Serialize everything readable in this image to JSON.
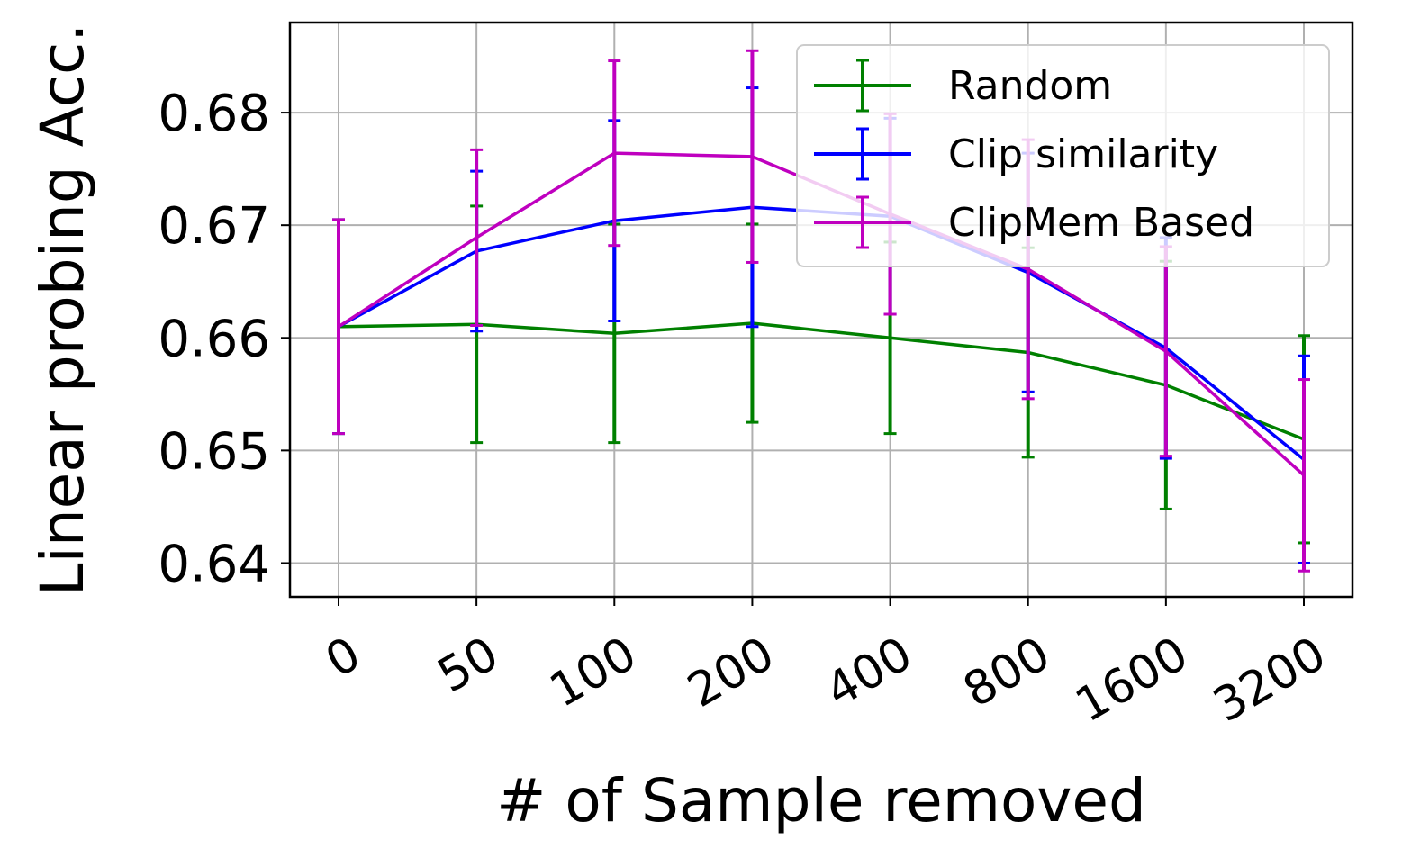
{
  "chart_data": {
    "type": "line",
    "title": "",
    "xlabel": "# of Sample removed",
    "ylabel": "Linear probing Acc.",
    "categories": [
      "0",
      "50",
      "100",
      "200",
      "400",
      "800",
      "1600",
      "3200"
    ],
    "ylim": [
      0.637,
      0.688
    ],
    "yticks": [
      "0.64",
      "0.65",
      "0.66",
      "0.67",
      "0.68"
    ],
    "grid": true,
    "legend_position": "top-right",
    "series": [
      {
        "name": "Random",
        "color": "#008000",
        "values": [
          0.661,
          0.6612,
          0.6604,
          0.6613,
          0.66,
          0.6587,
          0.6558,
          0.651
        ],
        "errors": [
          0.0095,
          0.0105,
          0.0097,
          0.0088,
          0.0085,
          0.0093,
          0.011,
          0.0092
        ]
      },
      {
        "name": "Clip similarity",
        "color": "#0000ff",
        "values": [
          0.661,
          0.6677,
          0.6704,
          0.6716,
          0.6708,
          0.6658,
          0.6591,
          0.6492
        ],
        "errors": [
          0.0095,
          0.0071,
          0.0089,
          0.0106,
          0.0087,
          0.0106,
          0.0098,
          0.0092
        ]
      },
      {
        "name": "ClipMem Based",
        "color": "#bf00bf",
        "values": [
          0.661,
          0.6689,
          0.6764,
          0.6761,
          0.671,
          0.6661,
          0.6588,
          0.6478
        ],
        "errors": [
          0.0095,
          0.0078,
          0.0082,
          0.0094,
          0.0089,
          0.0115,
          0.0093,
          0.0085
        ]
      }
    ]
  }
}
